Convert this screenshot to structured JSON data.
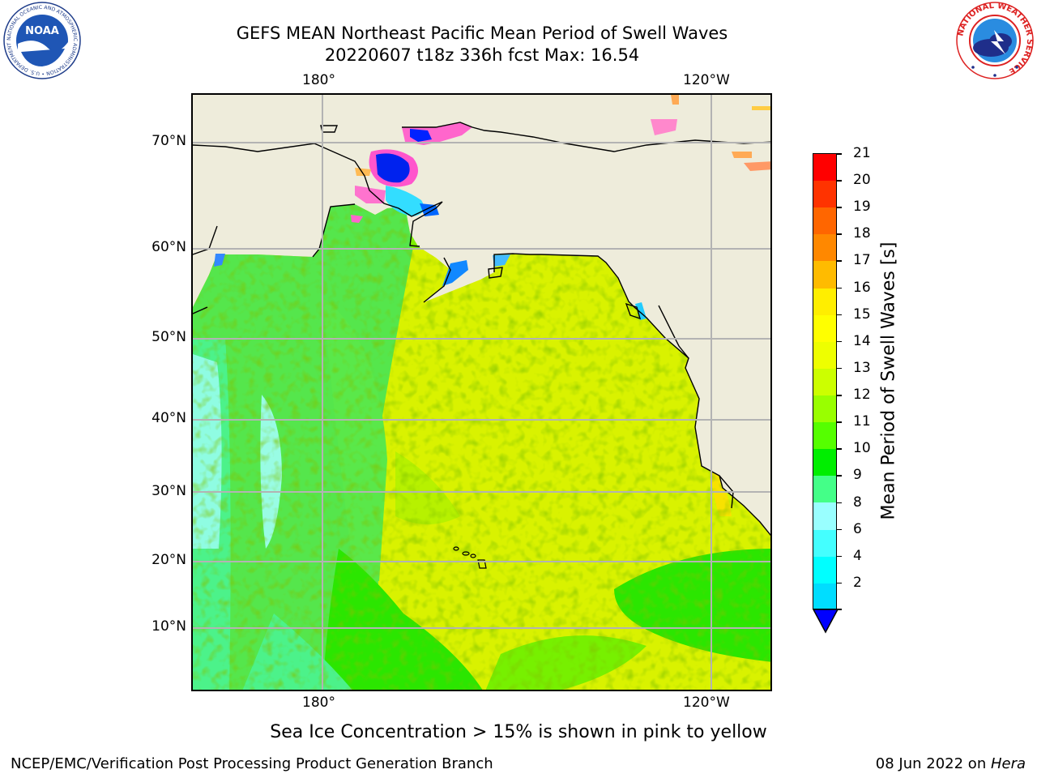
{
  "title": {
    "line1": "GEFS MEAN Northeast Pacific Mean Period of Swell Waves",
    "line2": "20220607 t18z 336h fcst   Max: 16.54"
  },
  "map": {
    "lon_ticks_top": [
      "180°",
      "120°W"
    ],
    "lon_ticks_bottom": [
      "180°",
      "120°W"
    ],
    "lat_ticks": [
      "70°N",
      "60°N",
      "50°N",
      "40°N",
      "30°N",
      "20°N",
      "10°N"
    ],
    "note": "Sea Ice Concentration > 15% is shown in pink to yellow",
    "colors": {
      "land": "#eeecdb",
      "ocean_main": "#d9f200",
      "ocean_west": "#55e64c",
      "ocean_swell_low": "#9fffff",
      "gridline": "#b3b3b3",
      "coast": "#000000"
    }
  },
  "colorbar": {
    "label": "Mean Period of Swell Waves [s]",
    "tick_labels": [
      "21",
      "20",
      "19",
      "18",
      "17",
      "16",
      "15",
      "14",
      "13",
      "12",
      "11",
      "10",
      "9",
      "8",
      "6",
      "4",
      "2"
    ],
    "colors": [
      "#ff0000",
      "#ff3300",
      "#ff6600",
      "#ff8800",
      "#ffbb00",
      "#ffee00",
      "#ffff00",
      "#eeff00",
      "#ccff00",
      "#99ff00",
      "#55ff00",
      "#00ee00",
      "#44ff88",
      "#99ffff",
      "#44ffff",
      "#00ffff",
      "#00ddff",
      "#0077ff",
      "#0000ff"
    ]
  },
  "footer": {
    "left": "NCEP/EMC/Verification Post Processing Product Generation Branch",
    "right_prefix": "08 Jun 2022 on ",
    "right_host": "Hera"
  },
  "logos": {
    "noaa_text": "NOAA",
    "noaa_ring": "NATIONAL OCEANIC AND ATMOSPHERIC ADMINISTRATION • U.S. DEPARTMENT OF COMMERCE •",
    "nws_ring": "NATIONAL WEATHER SERVICE"
  }
}
